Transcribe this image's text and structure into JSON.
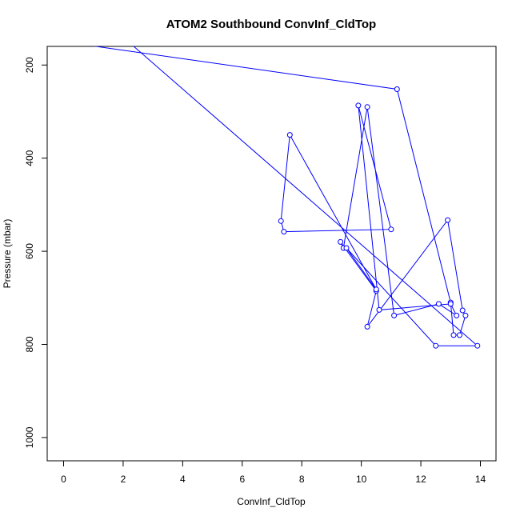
{
  "chart_data": {
    "type": "line",
    "title": "ATOM2 Southbound ConvInf_CldTop",
    "xlabel": "ConvInf_CldTop",
    "ylabel": "Pressure (mbar)",
    "xlim": [
      0,
      14
    ],
    "ylim": [
      160,
      1050
    ],
    "y_inverted": true,
    "grid": false,
    "line_color": "#0000ff",
    "marker": "open-circle",
    "x_ticks": [
      0,
      2,
      4,
      6,
      8,
      10,
      12,
      14
    ],
    "y_ticks": [
      200,
      400,
      600,
      800,
      1000
    ],
    "series": [
      {
        "x": [
          0,
          11.2,
          13.0,
          13.1,
          13.3,
          13.5,
          13.4,
          12.9,
          10.2,
          10.5,
          9.3,
          9.4,
          10.2,
          11.1,
          12.6,
          13.2,
          13.0,
          10.6,
          9.9,
          11.0,
          7.4,
          7.3,
          7.6,
          10.5,
          9.5,
          12.5,
          13.9,
          2.0
        ],
        "y": [
          150,
          252,
          710,
          780,
          780,
          738,
          727,
          533,
          762,
          685,
          580,
          593,
          290,
          738,
          713,
          738,
          713,
          726,
          287,
          553,
          558,
          535,
          350,
          682,
          593,
          803,
          803,
          140
        ]
      }
    ]
  }
}
